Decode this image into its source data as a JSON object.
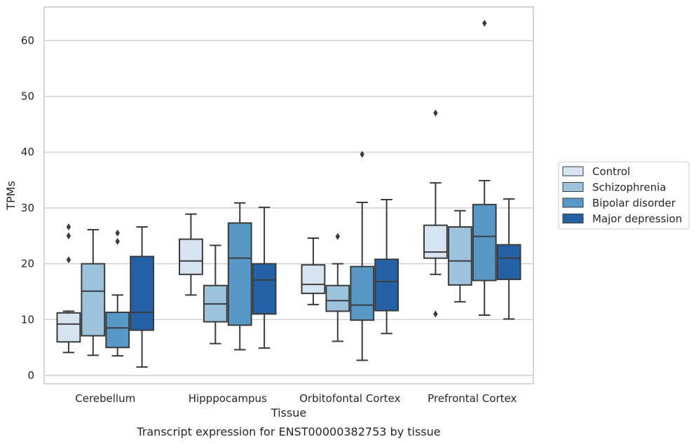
{
  "chart_data": {
    "type": "box",
    "caption": "Transcript expression for ENST00000382753 by tissue",
    "xlabel": "Tissue",
    "ylabel": "TPMs",
    "ylim": [
      -1.5,
      66
    ],
    "yticks": [
      0,
      10,
      20,
      30,
      40,
      50,
      60
    ],
    "grid": "horizontal",
    "legend_position": "right",
    "categories": [
      "Cerebellum",
      "Hipppocampus",
      "Orbitofontal Cortex",
      "Prefrontal Cortex"
    ],
    "series": [
      {
        "name": "Control",
        "color": "#d6e4f2",
        "boxes": [
          {
            "whislo": 4.1,
            "q1": 6.0,
            "med": 9.2,
            "q3": 11.2,
            "whishi": 11.5,
            "fliers": [
              20.7,
              25.0,
              26.6
            ]
          },
          {
            "whislo": 14.4,
            "q1": 18.1,
            "med": 20.5,
            "q3": 24.4,
            "whishi": 28.9,
            "fliers": []
          },
          {
            "whislo": 12.7,
            "q1": 14.7,
            "med": 16.3,
            "q3": 19.8,
            "whishi": 24.6,
            "fliers": []
          },
          {
            "whislo": 18.1,
            "q1": 21.0,
            "med": 22.1,
            "q3": 26.9,
            "whishi": 34.5,
            "fliers": [
              11.0,
              47.0
            ]
          }
        ]
      },
      {
        "name": "Schizophrenia",
        "color": "#9cc3dd",
        "boxes": [
          {
            "whislo": 3.6,
            "q1": 7.1,
            "med": 15.1,
            "q3": 20.0,
            "whishi": 26.1,
            "fliers": []
          },
          {
            "whislo": 5.7,
            "q1": 9.6,
            "med": 12.8,
            "q3": 16.1,
            "whishi": 23.3,
            "fliers": []
          },
          {
            "whislo": 6.1,
            "q1": 11.5,
            "med": 13.4,
            "q3": 16.1,
            "whishi": 20.0,
            "fliers": [
              24.9
            ]
          },
          {
            "whislo": 13.2,
            "q1": 16.2,
            "med": 20.5,
            "q3": 26.6,
            "whishi": 29.5,
            "fliers": []
          }
        ]
      },
      {
        "name": "Bipolar disorder",
        "color": "#5898c6",
        "boxes": [
          {
            "whislo": 3.5,
            "q1": 5.0,
            "med": 8.5,
            "q3": 11.3,
            "whishi": 14.4,
            "fliers": [
              24.0,
              25.5
            ]
          },
          {
            "whislo": 4.6,
            "q1": 9.0,
            "med": 21.0,
            "q3": 27.3,
            "whishi": 30.9,
            "fliers": []
          },
          {
            "whislo": 2.7,
            "q1": 9.9,
            "med": 12.6,
            "q3": 19.5,
            "whishi": 31.0,
            "fliers": [
              39.6
            ]
          },
          {
            "whislo": 10.8,
            "q1": 17.0,
            "med": 24.9,
            "q3": 30.6,
            "whishi": 34.9,
            "fliers": [
              63.1
            ]
          }
        ]
      },
      {
        "name": "Major depression",
        "color": "#2462a5",
        "boxes": [
          {
            "whislo": 1.5,
            "q1": 8.1,
            "med": 11.3,
            "q3": 21.3,
            "whishi": 26.6,
            "fliers": []
          },
          {
            "whislo": 4.9,
            "q1": 11.0,
            "med": 17.1,
            "q3": 20.0,
            "whishi": 30.1,
            "fliers": []
          },
          {
            "whislo": 7.5,
            "q1": 11.6,
            "med": 16.8,
            "q3": 20.8,
            "whishi": 31.5,
            "fliers": []
          },
          {
            "whislo": 10.1,
            "q1": 17.2,
            "med": 21.0,
            "q3": 23.4,
            "whishi": 31.6,
            "fliers": []
          }
        ]
      }
    ]
  }
}
